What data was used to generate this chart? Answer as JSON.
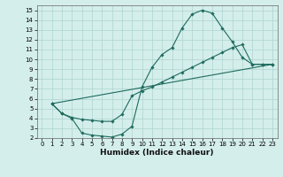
{
  "xlabel": "Humidex (Indice chaleur)",
  "bg_color": "#d4eeeb",
  "grid_color": "#aed4cf",
  "line_color": "#1e6b5e",
  "xlim": [
    -0.5,
    23.5
  ],
  "ylim": [
    2,
    15.5
  ],
  "yticks": [
    2,
    3,
    4,
    5,
    6,
    7,
    8,
    9,
    10,
    11,
    12,
    13,
    14,
    15
  ],
  "xticks": [
    0,
    1,
    2,
    3,
    4,
    5,
    6,
    7,
    8,
    9,
    10,
    11,
    12,
    13,
    14,
    15,
    16,
    17,
    18,
    19,
    20,
    21,
    22,
    23
  ],
  "curve1_x": [
    1,
    2,
    3,
    4,
    5,
    6,
    7,
    8,
    9,
    10,
    11,
    12,
    13,
    14,
    15,
    16,
    17,
    18,
    19,
    20,
    21,
    22,
    23
  ],
  "curve1_y": [
    5.5,
    4.5,
    4.0,
    2.5,
    2.3,
    2.2,
    2.1,
    2.4,
    3.2,
    7.2,
    9.2,
    10.5,
    11.2,
    13.2,
    14.6,
    15.0,
    14.7,
    13.2,
    11.8,
    10.2,
    9.5,
    9.5,
    9.5
  ],
  "curve2_x": [
    1,
    2,
    3,
    4,
    5,
    6,
    7,
    8,
    9,
    10,
    11,
    12,
    13,
    14,
    15,
    16,
    17,
    18,
    19,
    20,
    21,
    22,
    23
  ],
  "curve2_y": [
    5.5,
    4.5,
    4.1,
    3.9,
    3.8,
    3.7,
    3.7,
    4.4,
    6.3,
    6.8,
    7.2,
    7.7,
    8.2,
    8.7,
    9.2,
    9.7,
    10.2,
    10.7,
    11.2,
    11.5,
    9.5,
    9.5,
    9.5
  ],
  "curve3_x": [
    1,
    23
  ],
  "curve3_y": [
    5.5,
    9.5
  ],
  "tick_fontsize": 5.0,
  "xlabel_fontsize": 6.5
}
